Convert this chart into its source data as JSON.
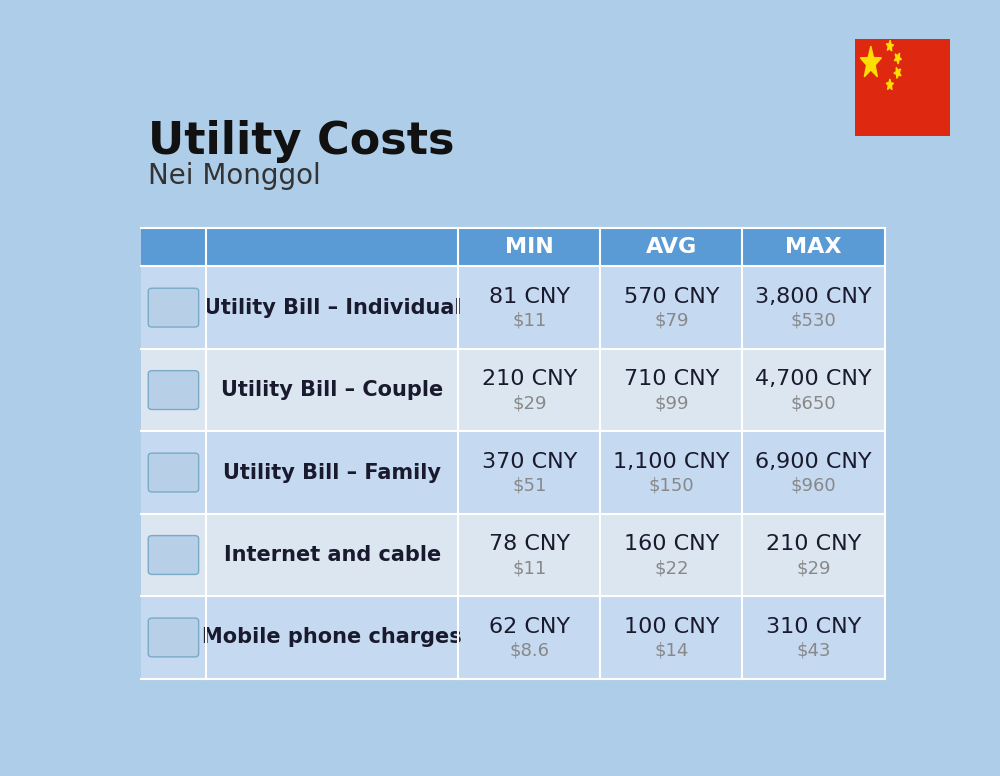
{
  "title": "Utility Costs",
  "subtitle": "Nei Monggol",
  "background_color": "#aecde8",
  "header_bg_color": "#5b9bd5",
  "header_text_color": "#ffffff",
  "row_bg_color_1": "#c5d9f1",
  "row_bg_color_2": "#dce6f1",
  "col_header_labels": [
    "MIN",
    "AVG",
    "MAX"
  ],
  "rows": [
    {
      "label": "Utility Bill – Individual",
      "min_cny": "81 CNY",
      "min_usd": "$11",
      "avg_cny": "570 CNY",
      "avg_usd": "$79",
      "max_cny": "3,800 CNY",
      "max_usd": "$530"
    },
    {
      "label": "Utility Bill – Couple",
      "min_cny": "210 CNY",
      "min_usd": "$29",
      "avg_cny": "710 CNY",
      "avg_usd": "$99",
      "max_cny": "4,700 CNY",
      "max_usd": "$650"
    },
    {
      "label": "Utility Bill – Family",
      "min_cny": "370 CNY",
      "min_usd": "$51",
      "avg_cny": "1,100 CNY",
      "avg_usd": "$150",
      "max_cny": "6,900 CNY",
      "max_usd": "$960"
    },
    {
      "label": "Internet and cable",
      "min_cny": "78 CNY",
      "min_usd": "$11",
      "avg_cny": "160 CNY",
      "avg_usd": "$22",
      "max_cny": "210 CNY",
      "max_usd": "$29"
    },
    {
      "label": "Mobile phone charges",
      "min_cny": "62 CNY",
      "min_usd": "$8.6",
      "avg_cny": "100 CNY",
      "avg_usd": "$14",
      "max_cny": "310 CNY",
      "max_usd": "$43"
    }
  ],
  "title_fontsize": 32,
  "subtitle_fontsize": 20,
  "header_fontsize": 16,
  "label_fontsize": 15,
  "value_fontsize": 16,
  "usd_fontsize": 13,
  "cny_color": "#1a1a2e",
  "usd_color": "#888888",
  "label_color": "#1a1a2e"
}
